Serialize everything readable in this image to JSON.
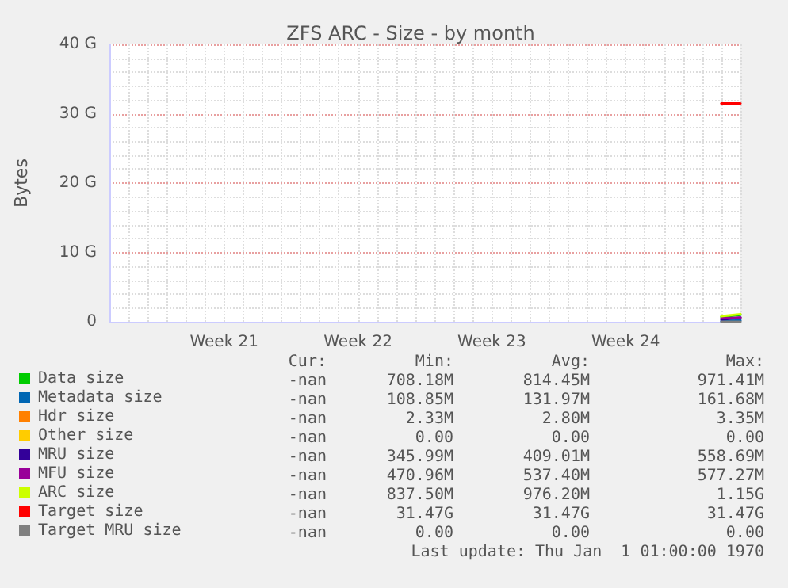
{
  "chart_data": {
    "type": "line",
    "title": "ZFS ARC - Size - by month",
    "ylabel": "Bytes",
    "categories": [
      null,
      null,
      null,
      null,
      null,
      null,
      "Week 21",
      null,
      null,
      null,
      null,
      null,
      null,
      "Week 22",
      null,
      null,
      null,
      null,
      null,
      null,
      "Week 23",
      null,
      null,
      null,
      null,
      null,
      null,
      "Week 24",
      null,
      null,
      null,
      null,
      null,
      null
    ],
    "series": [
      {
        "name": "Data size",
        "color": "#00cc00",
        "values": [
          null,
          null,
          null,
          null,
          null,
          null,
          null,
          null,
          null,
          null,
          null,
          null,
          null,
          null,
          null,
          null,
          null,
          null,
          null,
          null,
          null,
          null,
          null,
          null,
          null,
          null,
          null,
          null,
          null,
          null,
          null,
          null,
          0.7,
          1.0
        ]
      },
      {
        "name": "Metadata size",
        "color": "#0066b3",
        "values": [
          null,
          null,
          null,
          null,
          null,
          null,
          null,
          null,
          null,
          null,
          null,
          null,
          null,
          null,
          null,
          null,
          null,
          null,
          null,
          null,
          null,
          null,
          null,
          null,
          null,
          null,
          null,
          null,
          null,
          null,
          null,
          null,
          0.1,
          0.2
        ]
      },
      {
        "name": "Hdr size",
        "color": "#ff8000",
        "values": [
          null,
          null,
          null,
          null,
          null,
          null,
          null,
          null,
          null,
          null,
          null,
          null,
          null,
          null,
          null,
          null,
          null,
          null,
          null,
          null,
          null,
          null,
          null,
          null,
          null,
          null,
          null,
          null,
          null,
          null,
          null,
          null,
          null,
          null
        ]
      },
      {
        "name": "Other size",
        "color": "#ffcc00",
        "values": [
          null,
          null,
          null,
          null,
          null,
          null,
          null,
          null,
          null,
          null,
          null,
          null,
          null,
          null,
          null,
          null,
          null,
          null,
          null,
          null,
          null,
          null,
          null,
          null,
          null,
          null,
          null,
          null,
          null,
          null,
          null,
          null,
          null,
          null
        ]
      },
      {
        "name": "MRU size",
        "color": "#330099",
        "values": [
          null,
          null,
          null,
          null,
          null,
          null,
          null,
          null,
          null,
          null,
          null,
          null,
          null,
          null,
          null,
          null,
          null,
          null,
          null,
          null,
          null,
          null,
          null,
          null,
          null,
          null,
          null,
          null,
          null,
          null,
          null,
          null,
          0.3,
          0.6
        ]
      },
      {
        "name": "MFU size",
        "color": "#990099",
        "values": [
          null,
          null,
          null,
          null,
          null,
          null,
          null,
          null,
          null,
          null,
          null,
          null,
          null,
          null,
          null,
          null,
          null,
          null,
          null,
          null,
          null,
          null,
          null,
          null,
          null,
          null,
          null,
          null,
          null,
          null,
          null,
          null,
          0.5,
          0.6
        ]
      },
      {
        "name": "ARC size",
        "color": "#ccff00",
        "values": [
          null,
          null,
          null,
          null,
          null,
          null,
          null,
          null,
          null,
          null,
          null,
          null,
          null,
          null,
          null,
          null,
          null,
          null,
          null,
          null,
          null,
          null,
          null,
          null,
          null,
          null,
          null,
          null,
          null,
          null,
          null,
          null,
          0.8,
          1.1
        ]
      },
      {
        "name": "Target size",
        "color": "#ff0000",
        "values": [
          null,
          null,
          null,
          null,
          null,
          null,
          null,
          null,
          null,
          null,
          null,
          null,
          null,
          null,
          null,
          null,
          null,
          null,
          null,
          null,
          null,
          null,
          null,
          null,
          null,
          null,
          null,
          null,
          null,
          null,
          null,
          null,
          31.5,
          31.5
        ]
      },
      {
        "name": "Target MRU size",
        "color": "#808080",
        "values": [
          null,
          null,
          null,
          null,
          null,
          null,
          null,
          null,
          null,
          null,
          null,
          null,
          null,
          null,
          null,
          null,
          null,
          null,
          null,
          null,
          null,
          null,
          null,
          null,
          null,
          null,
          null,
          null,
          null,
          null,
          null,
          null,
          0,
          0
        ]
      }
    ],
    "ylim": [
      0,
      40
    ],
    "yticks": [
      0,
      {
        "value": 10,
        "label": "10 G"
      },
      {
        "value": 20,
        "label": "20 G"
      },
      {
        "value": 30,
        "label": "30 G"
      },
      {
        "value": 40,
        "label": "40 G"
      }
    ],
    "grid": true,
    "legend": "bottom",
    "marker": "none",
    "line_style": "solid",
    "annotations": [
      "Cur:",
      "Min:",
      "Avg:",
      "Max:",
      "-nan",
      "708.18M",
      "814.45M",
      "971.41M",
      "-nan",
      "108.85M",
      "131.97M",
      "161.68M",
      "-nan",
      "2.33M",
      "2.80M",
      "3.35M",
      "-nan",
      "0.00",
      "0.00",
      "0.00",
      "-nan",
      "345.99M",
      "409.01M",
      "558.69M",
      "-nan",
      "470.96M",
      "537.40M",
      "577.27M",
      "-nan",
      "837.50M",
      "976.20M",
      "1.15G",
      "-nan",
      "31.47G",
      "31.47G",
      "31.47G",
      "-nan",
      "0.00",
      "0.00",
      "0.00",
      "Last update: Thu Jan  1 01:00:00 1970"
    ]
  }
}
